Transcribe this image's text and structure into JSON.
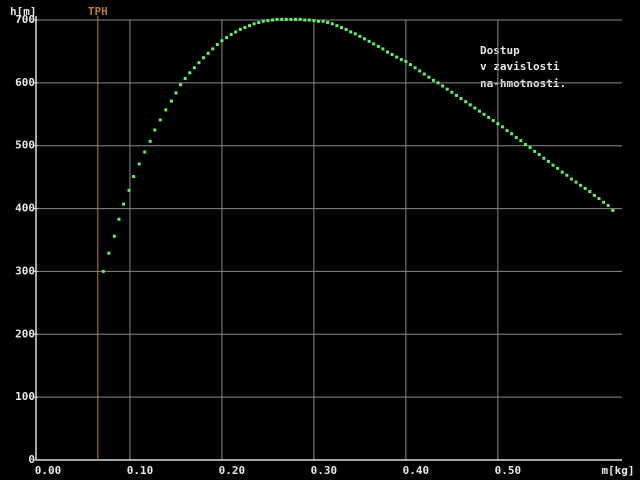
{
  "chart_data": {
    "type": "scatter",
    "x_label": "m[kg]",
    "y_label": "h[m]",
    "annotation": [
      "Dostup",
      "v zavislosti",
      "na-hmotnosti."
    ],
    "reference_line": {
      "label": "TPH",
      "x": 0.065,
      "color": "#b8803a"
    },
    "xlim": [
      0,
      0.635
    ],
    "ylim": [
      0,
      700
    ],
    "xticks": [
      {
        "value": 0,
        "label": "0.00"
      },
      {
        "value": 0.1,
        "label": "0.10"
      },
      {
        "value": 0.2,
        "label": "0.20"
      },
      {
        "value": 0.3,
        "label": "0.30"
      },
      {
        "value": 0.4,
        "label": "0.40"
      },
      {
        "value": 0.5,
        "label": "0.50"
      }
    ],
    "yticks": [
      0,
      100,
      200,
      300,
      400,
      500,
      600,
      700
    ],
    "grid": true,
    "series": [
      {
        "color": "#66ee66",
        "x": [
          0.071,
          0.077,
          0.083,
          0.088,
          0.093,
          0.099,
          0.104,
          0.11,
          0.116,
          0.122,
          0.127,
          0.133,
          0.139,
          0.145,
          0.15,
          0.155,
          0.16,
          0.165,
          0.17,
          0.175,
          0.18,
          0.185,
          0.19,
          0.195,
          0.2,
          0.205,
          0.21,
          0.215,
          0.22,
          0.225,
          0.23,
          0.235,
          0.24,
          0.245,
          0.25,
          0.255,
          0.26,
          0.265,
          0.27,
          0.275,
          0.28,
          0.285,
          0.29,
          0.295,
          0.3,
          0.305,
          0.31,
          0.315,
          0.32,
          0.325,
          0.33,
          0.335,
          0.34,
          0.345,
          0.35,
          0.355,
          0.36,
          0.365,
          0.37,
          0.375,
          0.38,
          0.385,
          0.39,
          0.395,
          0.4,
          0.405,
          0.41,
          0.415,
          0.42,
          0.425,
          0.43,
          0.435,
          0.44,
          0.445,
          0.45,
          0.455,
          0.46,
          0.465,
          0.47,
          0.475,
          0.48,
          0.485,
          0.49,
          0.495,
          0.5,
          0.505,
          0.51,
          0.515,
          0.52,
          0.525,
          0.53,
          0.535,
          0.54,
          0.545,
          0.55,
          0.555,
          0.56,
          0.565,
          0.57,
          0.575,
          0.58,
          0.585,
          0.59,
          0.595,
          0.6,
          0.605,
          0.61,
          0.615,
          0.62,
          0.625
        ],
        "values": [
          300,
          329,
          356,
          383,
          407,
          429,
          451,
          471,
          490,
          507,
          525,
          541,
          557,
          571,
          584,
          597,
          607,
          616,
          624,
          632,
          640,
          647,
          654,
          661,
          667,
          672,
          677,
          681,
          685,
          688,
          691,
          694,
          696,
          698,
          699,
          700,
          701,
          701,
          701,
          701,
          701,
          701,
          700,
          700,
          699,
          698,
          698,
          696,
          694,
          691,
          688,
          685,
          681,
          678,
          674,
          670,
          666,
          662,
          658,
          654,
          649,
          645,
          641,
          637,
          634,
          629,
          624,
          619,
          614,
          609,
          604,
          600,
          595,
          590,
          585,
          580,
          575,
          570,
          565,
          560,
          555,
          550,
          545,
          540,
          535,
          530,
          524,
          519,
          513,
          508,
          502,
          497,
          491,
          486,
          480,
          475,
          469,
          464,
          458,
          453,
          447,
          442,
          437,
          432,
          427,
          421,
          416,
          410,
          405,
          397
        ]
      }
    ]
  }
}
